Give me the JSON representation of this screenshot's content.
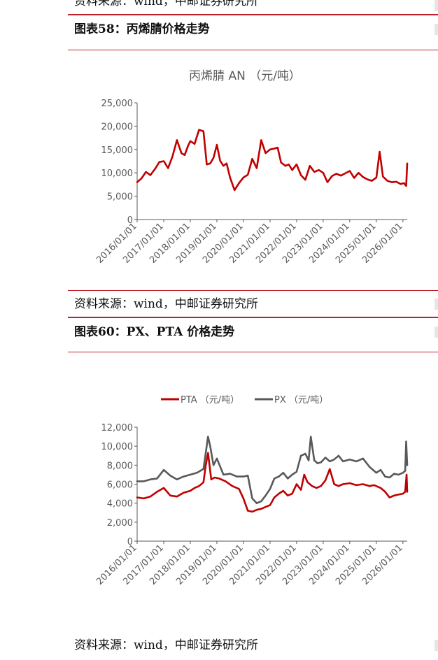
{
  "header": {
    "prev_source": "资料来源：wind，中邮证券研究所"
  },
  "figure58": {
    "title": "图表58：丙烯腈价格走势",
    "source": "资料来源：wind，中邮证券研究所"
  },
  "figure60": {
    "title": "图表60：PX、PTA 价格走势",
    "source": "资料来源：wind，中邮证券研究所"
  },
  "colors": {
    "rule": "#c0202a",
    "pta": "#c00000",
    "px": "#595959",
    "an": "#c00000"
  },
  "chart_data": [
    {
      "type": "line",
      "title": "丙烯腈 AN （元/吨）",
      "xlabel": "",
      "ylabel": "",
      "x_start": "2016/01/01",
      "x_end": "2026/03/01",
      "x_ticks": [
        "2016/01/01",
        "2017/01/01",
        "2018/01/01",
        "2019/01/01",
        "2020/01/01",
        "2021/01/01",
        "2022/01/01",
        "2023/01/01",
        "2024/01/01",
        "2025/01/01",
        "2026/01/01"
      ],
      "ylim": [
        0,
        25000
      ],
      "y_ticks": [
        "0",
        "5,000",
        "10,000",
        "15,000",
        "20,000",
        "25,000"
      ],
      "legend": "none",
      "grid": false,
      "series": [
        {
          "color": "#c00000",
          "x": [
            "2016/01/01",
            "2016/03/01",
            "2016/05/01",
            "2016/07/01",
            "2016/09/01",
            "2016/11/01",
            "2017/01/01",
            "2017/03/01",
            "2017/05/01",
            "2017/07/01",
            "2017/09/01",
            "2017/10/15",
            "2017/12/01",
            "2018/01/01",
            "2018/03/01",
            "2018/05/01",
            "2018/07/01",
            "2018/08/15",
            "2018/10/01",
            "2018/11/15",
            "2019/01/01",
            "2019/02/15",
            "2019/04/01",
            "2019/05/15",
            "2019/07/01",
            "2019/09/01",
            "2019/11/01",
            "2020/01/01",
            "2020/03/01",
            "2020/05/01",
            "2020/07/01",
            "2020/09/01",
            "2020/11/01",
            "2021/01/01",
            "2021/03/01",
            "2021/04/15",
            "2021/06/01",
            "2021/08/01",
            "2021/09/15",
            "2021/11/01",
            "2022/01/01",
            "2022/03/01",
            "2022/05/01",
            "2022/07/01",
            "2022/09/01",
            "2022/11/01",
            "2023/01/01",
            "2023/03/01",
            "2023/05/01",
            "2023/07/01",
            "2023/09/01",
            "2023/11/01",
            "2024/01/01",
            "2024/03/01",
            "2024/05/01",
            "2024/07/01",
            "2024/09/01",
            "2024/11/01",
            "2025/01/01",
            "2025/02/15",
            "2025/04/01",
            "2025/06/01",
            "2025/08/01",
            "2025/10/01",
            "2025/12/01",
            "2026/01/15",
            "2026/02/15",
            "2026/03/01"
          ],
          "y": [
            8000,
            8800,
            10200,
            9500,
            10800,
            12300,
            12500,
            11000,
            13500,
            17000,
            14200,
            13800,
            15800,
            16800,
            16200,
            19200,
            18900,
            11800,
            12000,
            13200,
            16000,
            12600,
            11500,
            12000,
            9000,
            6300,
            7800,
            9000,
            9600,
            13000,
            11000,
            17000,
            14200,
            15000,
            15200,
            15400,
            12200,
            11500,
            11800,
            10600,
            11800,
            9500,
            8500,
            11500,
            10200,
            10600,
            10000,
            8000,
            9300,
            9800,
            9400,
            9900,
            10400,
            8900,
            10000,
            9100,
            8600,
            8300,
            9000,
            14500,
            9200,
            8300,
            8000,
            8100,
            7600,
            7800,
            7200,
            12000
          ]
        }
      ]
    },
    {
      "type": "line",
      "title": "",
      "xlabel": "",
      "ylabel": "",
      "x_start": "2016/01/01",
      "x_end": "2026/03/01",
      "x_ticks": [
        "2016/01/01",
        "2017/01/01",
        "2018/01/01",
        "2019/01/01",
        "2020/01/01",
        "2021/01/01",
        "2022/01/01",
        "2023/01/01",
        "2024/01/01",
        "2025/01/01",
        "2026/01/01"
      ],
      "ylim": [
        0,
        12000
      ],
      "y_ticks": [
        "0",
        "2,000",
        "4,000",
        "6,000",
        "8,000",
        "10,000",
        "12,000"
      ],
      "legend": "top",
      "grid": false,
      "series": [
        {
          "name": "PTA （元/吨）",
          "color": "#c00000",
          "x": [
            "2016/01/01",
            "2016/04/01",
            "2016/07/01",
            "2016/10/01",
            "2017/01/01",
            "2017/04/01",
            "2017/07/01",
            "2017/10/01",
            "2018/01/01",
            "2018/03/01",
            "2018/05/01",
            "2018/07/01",
            "2018/08/01",
            "2018/09/01",
            "2018/10/15",
            "2018/12/01",
            "2019/02/01",
            "2019/05/01",
            "2019/08/01",
            "2019/11/01",
            "2020/01/01",
            "2020/03/01",
            "2020/05/01",
            "2020/07/01",
            "2020/09/01",
            "2020/11/01",
            "2021/01/01",
            "2021/03/01",
            "2021/05/01",
            "2021/07/01",
            "2021/09/01",
            "2021/11/01",
            "2022/01/01",
            "2022/03/01",
            "2022/04/15",
            "2022/06/01",
            "2022/08/01",
            "2022/10/01",
            "2022/12/01",
            "2023/02/01",
            "2023/04/01",
            "2023/06/01",
            "2023/08/01",
            "2023/10/01",
            "2024/01/01",
            "2024/04/01",
            "2024/07/01",
            "2024/10/01",
            "2024/12/01",
            "2025/03/01",
            "2025/05/01",
            "2025/07/01",
            "2025/09/01",
            "2025/11/01",
            "2026/01/01",
            "2026/02/01",
            "2026/02/20",
            "2026/03/01"
          ],
          "y": [
            4600,
            4500,
            4700,
            5200,
            5600,
            4800,
            4700,
            5100,
            5300,
            5600,
            5800,
            6200,
            8000,
            9300,
            6500,
            6700,
            6600,
            6300,
            5800,
            5500,
            4500,
            3200,
            3100,
            3300,
            3400,
            3600,
            3800,
            4600,
            5000,
            5300,
            4800,
            5000,
            6000,
            5400,
            7000,
            6200,
            5800,
            5600,
            5800,
            6400,
            7600,
            6000,
            5800,
            6000,
            6100,
            5900,
            6000,
            5800,
            5900,
            5600,
            5200,
            4600,
            4800,
            4900,
            5000,
            5200,
            7000,
            5200
          ]
        },
        {
          "name": "PX （元/吨）",
          "color": "#595959",
          "x": [
            "2016/01/01",
            "2016/04/01",
            "2016/07/01",
            "2016/10/01",
            "2017/01/01",
            "2017/04/01",
            "2017/07/01",
            "2017/10/01",
            "2018/01/01",
            "2018/04/01",
            "2018/07/01",
            "2018/09/01",
            "2018/10/01",
            "2018/11/15",
            "2019/01/01",
            "2019/04/01",
            "2019/07/01",
            "2019/10/01",
            "2020/01/01",
            "2020/03/01",
            "2020/05/01",
            "2020/07/01",
            "2020/09/01",
            "2020/11/01",
            "2021/01/01",
            "2021/03/01",
            "2021/05/01",
            "2021/07/01",
            "2021/09/01",
            "2021/11/01",
            "2022/01/01",
            "2022/03/01",
            "2022/05/01",
            "2022/06/15",
            "2022/07/15",
            "2022/09/01",
            "2022/10/15",
            "2022/12/01",
            "2023/02/01",
            "2023/04/01",
            "2023/06/01",
            "2023/08/01",
            "2023/10/01",
            "2024/01/01",
            "2024/04/01",
            "2024/07/01",
            "2024/10/01",
            "2025/01/01",
            "2025/03/01",
            "2025/05/01",
            "2025/07/01",
            "2025/09/01",
            "2025/11/01",
            "2026/01/01",
            "2026/02/01",
            "2026/02/15",
            "2026/03/01"
          ],
          "y": [
            6300,
            6300,
            6500,
            6600,
            7500,
            6900,
            6500,
            6800,
            7000,
            7200,
            7600,
            11000,
            10000,
            8000,
            8700,
            7000,
            7100,
            6800,
            6800,
            6900,
            4500,
            4000,
            4200,
            4800,
            5500,
            6600,
            6800,
            7200,
            6600,
            7000,
            7300,
            9000,
            9200,
            8500,
            11000,
            8500,
            8200,
            8300,
            8800,
            8400,
            8600,
            9000,
            8400,
            8600,
            8400,
            8700,
            7800,
            7200,
            7500,
            6800,
            6700,
            7100,
            7000,
            7200,
            7400,
            10500,
            8000
          ]
        }
      ]
    }
  ]
}
